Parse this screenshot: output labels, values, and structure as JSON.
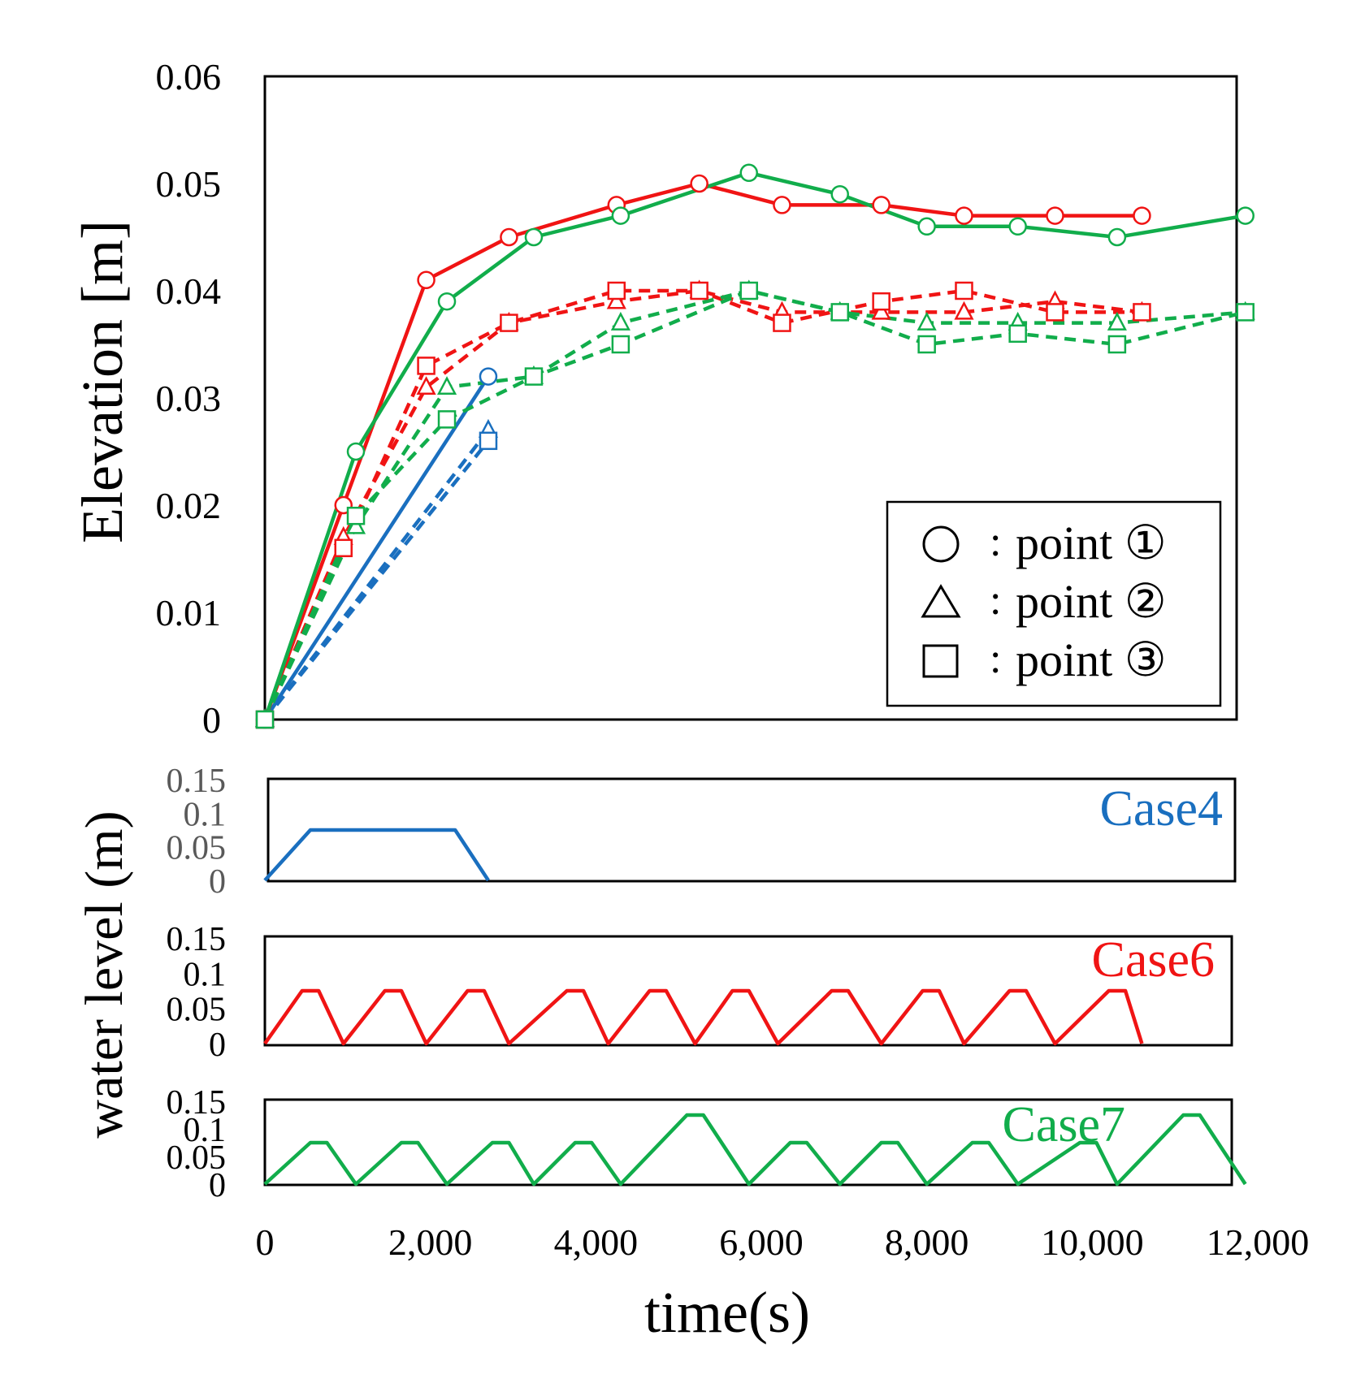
{
  "figure": {
    "ylabel_top": "Elevation [m]",
    "ylabel_bottom": "water level (m)",
    "xlabel": "time(s)"
  },
  "colors": {
    "case4": "#1a6fbf",
    "case6": "#f01414",
    "case7": "#11ad4b",
    "frame": "#000000",
    "tick_gray": "#595959"
  },
  "legend": [
    {
      "marker": "circle",
      "label": "point ①"
    },
    {
      "marker": "triangle",
      "label": "point ②"
    },
    {
      "marker": "square",
      "label": "point ③"
    }
  ],
  "legend_sep": ":",
  "chart_data": [
    {
      "type": "line",
      "title": "",
      "xlabel": "time(s)",
      "ylabel": "Elevation [m]",
      "xlim": [
        0,
        12000
      ],
      "ylim": [
        0,
        0.06
      ],
      "xticks": [
        "0",
        "2,000",
        "4,000",
        "6,000",
        "8,000",
        "10,000",
        "12,000"
      ],
      "yticks": [
        "0",
        "0.01",
        "0.02",
        "0.03",
        "0.04",
        "0.05",
        "0.06"
      ],
      "series": [
        {
          "name": "Case4 point ①",
          "color_key": "case4",
          "marker": "circle",
          "dash": false,
          "x": [
            0,
            2700
          ],
          "y": [
            0,
            0.032
          ]
        },
        {
          "name": "Case4 point ②",
          "color_key": "case4",
          "marker": "triangle",
          "dash": true,
          "x": [
            0,
            2700
          ],
          "y": [
            0,
            0.027
          ]
        },
        {
          "name": "Case4 point ③",
          "color_key": "case4",
          "marker": "square",
          "dash": true,
          "x": [
            0,
            2700
          ],
          "y": [
            0,
            0.026
          ]
        },
        {
          "name": "Case6 point ①",
          "color_key": "case6",
          "marker": "circle",
          "dash": false,
          "x": [
            0,
            950,
            1950,
            2950,
            4250,
            5250,
            6250,
            7450,
            8450,
            9550,
            10600
          ],
          "y": [
            0,
            0.02,
            0.041,
            0.045,
            0.048,
            0.05,
            0.048,
            0.048,
            0.047,
            0.047,
            0.047
          ]
        },
        {
          "name": "Case6 point ②",
          "color_key": "case6",
          "marker": "triangle",
          "dash": true,
          "x": [
            0,
            950,
            1950,
            2950,
            4250,
            5250,
            6250,
            7450,
            8450,
            9550,
            10600
          ],
          "y": [
            0,
            0.017,
            0.031,
            0.037,
            0.039,
            0.04,
            0.038,
            0.038,
            0.038,
            0.039,
            0.038
          ]
        },
        {
          "name": "Case6 point ③",
          "color_key": "case6",
          "marker": "square",
          "dash": true,
          "x": [
            0,
            950,
            1950,
            2950,
            4250,
            5250,
            6250,
            7450,
            8450,
            9550,
            10600
          ],
          "y": [
            0,
            0.016,
            0.033,
            0.037,
            0.04,
            0.04,
            0.037,
            0.039,
            0.04,
            0.038,
            0.038
          ]
        },
        {
          "name": "Case7 point ①",
          "color_key": "case7",
          "marker": "circle",
          "dash": false,
          "x": [
            0,
            1100,
            2200,
            3250,
            4300,
            5850,
            6950,
            8000,
            9100,
            10300,
            11850
          ],
          "y": [
            0,
            0.025,
            0.039,
            0.045,
            0.047,
            0.051,
            0.049,
            0.046,
            0.046,
            0.045,
            0.047
          ]
        },
        {
          "name": "Case7 point ②",
          "color_key": "case7",
          "marker": "triangle",
          "dash": true,
          "x": [
            0,
            1100,
            2200,
            3250,
            4300,
            5850,
            6950,
            8000,
            9100,
            10300,
            11850
          ],
          "y": [
            0,
            0.018,
            0.031,
            0.032,
            0.037,
            0.04,
            0.038,
            0.037,
            0.037,
            0.037,
            0.038
          ]
        },
        {
          "name": "Case7 point ③",
          "color_key": "case7",
          "marker": "square",
          "dash": true,
          "x": [
            0,
            1100,
            2200,
            3250,
            4300,
            5850,
            6950,
            8000,
            9100,
            10300,
            11850
          ],
          "y": [
            0,
            0.019,
            0.028,
            0.032,
            0.035,
            0.04,
            0.038,
            0.035,
            0.036,
            0.035,
            0.038
          ]
        }
      ]
    },
    {
      "type": "line",
      "title": "Case4",
      "color_key": "case4",
      "ylabel": "water level (m)",
      "xlim": [
        0,
        12000
      ],
      "ylim": [
        0,
        0.15
      ],
      "yticks": [
        "0",
        "0.05",
        "0.1",
        "0.15"
      ],
      "tick_color_key": "tick_gray",
      "x": [
        0,
        550,
        2300,
        2700
      ],
      "y": [
        0,
        0.075,
        0.075,
        0
      ]
    },
    {
      "type": "line",
      "title": "Case6",
      "color_key": "case6",
      "ylabel": "water level (m)",
      "xlim": [
        0,
        12000
      ],
      "ylim": [
        0,
        0.15
      ],
      "yticks": [
        "0",
        "0.05",
        "0.1",
        "0.15"
      ],
      "x": [
        0,
        450,
        650,
        950,
        1450,
        1650,
        1950,
        2450,
        2650,
        2950,
        3650,
        3850,
        4150,
        4650,
        4850,
        5200,
        5650,
        5850,
        6200,
        6850,
        7050,
        7450,
        7950,
        8150,
        8450,
        9000,
        9200,
        9550,
        10200,
        10400,
        10600
      ],
      "y": [
        0,
        0.075,
        0.075,
        0,
        0.075,
        0.075,
        0,
        0.075,
        0.075,
        0,
        0.075,
        0.075,
        0,
        0.075,
        0.075,
        0,
        0.075,
        0.075,
        0,
        0.075,
        0.075,
        0,
        0.075,
        0.075,
        0,
        0.075,
        0.075,
        0,
        0.075,
        0.075,
        0
      ]
    },
    {
      "type": "line",
      "title": "Case7",
      "color_key": "case7",
      "ylabel": "water level (m)",
      "xlim": [
        0,
        12000
      ],
      "ylim": [
        0,
        0.15
      ],
      "yticks": [
        "0",
        "0.05",
        "0.1",
        "0.15"
      ],
      "x": [
        0,
        550,
        750,
        1100,
        1650,
        1850,
        2200,
        2750,
        2950,
        3250,
        3750,
        3950,
        4300,
        5100,
        5300,
        5850,
        6350,
        6550,
        6950,
        7450,
        7650,
        8000,
        8550,
        8750,
        9100,
        9850,
        10050,
        10300,
        11100,
        11300,
        11850
      ],
      "y": [
        0,
        0.075,
        0.075,
        0,
        0.075,
        0.075,
        0,
        0.075,
        0.075,
        0,
        0.075,
        0.075,
        0,
        0.125,
        0.125,
        0,
        0.075,
        0.075,
        0,
        0.075,
        0.075,
        0,
        0.075,
        0.075,
        0,
        0.075,
        0.075,
        0,
        0.125,
        0.125,
        0
      ]
    }
  ]
}
